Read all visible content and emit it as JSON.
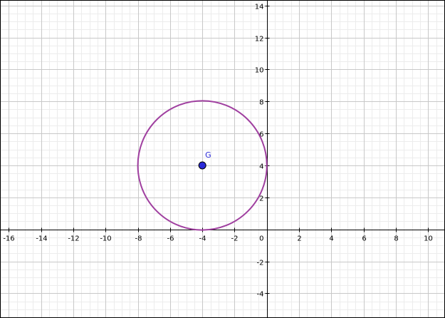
{
  "graph": {
    "x_range": [
      -16.5,
      11.0
    ],
    "y_range": [
      -5.5,
      14.3
    ],
    "x_ticks": [
      -16,
      -14,
      -12,
      -10,
      -8,
      -6,
      -4,
      -2,
      2,
      4,
      6,
      8,
      10
    ],
    "y_ticks": [
      -4,
      -2,
      2,
      4,
      6,
      8,
      10,
      12,
      14
    ],
    "origin_label": "0",
    "grid": true,
    "minor_grid_step": 0.5,
    "major_grid_step": 2,
    "colors": {
      "major_grid": "#c8c8c8",
      "minor_grid": "#ececec",
      "axis": "#000000",
      "circle": "#a040a0",
      "point_fill": "#2a2ad8",
      "point_label": "#2a2ad8"
    }
  },
  "objects": {
    "circle": {
      "center": [
        -4,
        4
      ],
      "radius": 4
    },
    "point": {
      "name": "G",
      "x": -4,
      "y": 4
    }
  }
}
